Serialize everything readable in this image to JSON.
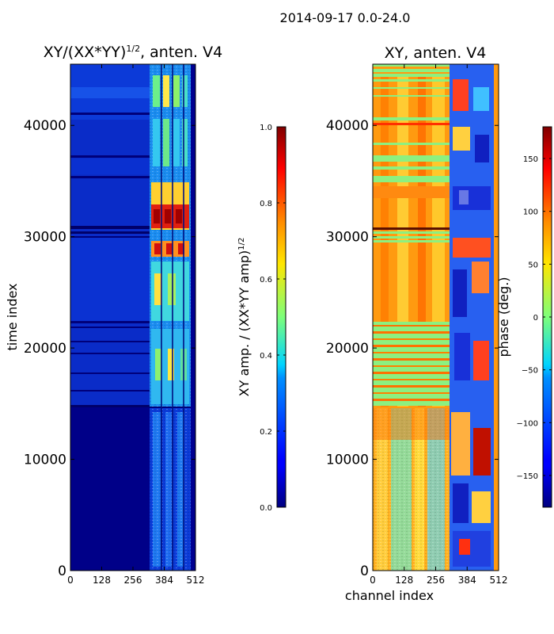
{
  "figure": {
    "suptitle": "2014-09-17 0.0-24.0"
  },
  "chart_data": [
    {
      "type": "heatmap",
      "title_main": "XY/(XX*YY)",
      "title_exponent": "1/2",
      "title_suffix": ", anten. V4",
      "xlabel": "",
      "ylabel": "time index",
      "xlim": [
        0,
        512
      ],
      "ylim": [
        0,
        45500
      ],
      "xticks": [
        0,
        128,
        256,
        384,
        512
      ],
      "yticks": [
        0,
        10000,
        20000,
        30000,
        40000
      ],
      "colormap": "jet",
      "colorbar": {
        "label_main": "XY amp. / (XX*YY amp)",
        "label_exponent": "1/2",
        "range": [
          0.0,
          1.0
        ],
        "ticks": [
          "0.0",
          "0.2",
          "0.4",
          "0.6",
          "0.8",
          "1.0"
        ],
        "tick_values": [
          0.0,
          0.2,
          0.4,
          0.6,
          0.8,
          1.0
        ]
      }
    },
    {
      "type": "heatmap",
      "title": "XY, anten. V4",
      "xlabel": "channel index",
      "ylabel": "",
      "xlim": [
        0,
        512
      ],
      "ylim": [
        0,
        45500
      ],
      "xticks": [
        0,
        128,
        256,
        384,
        512
      ],
      "yticks": [
        0,
        10000,
        20000,
        30000,
        40000
      ],
      "colormap": "jet",
      "colorbar": {
        "label": "phase (deg.)",
        "range": [
          -180,
          180
        ],
        "ticks": [
          "−150",
          "−100",
          "−50",
          "0",
          "50",
          "100",
          "150"
        ],
        "tick_values": [
          -150,
          -100,
          -50,
          0,
          50,
          100,
          150
        ]
      }
    }
  ]
}
